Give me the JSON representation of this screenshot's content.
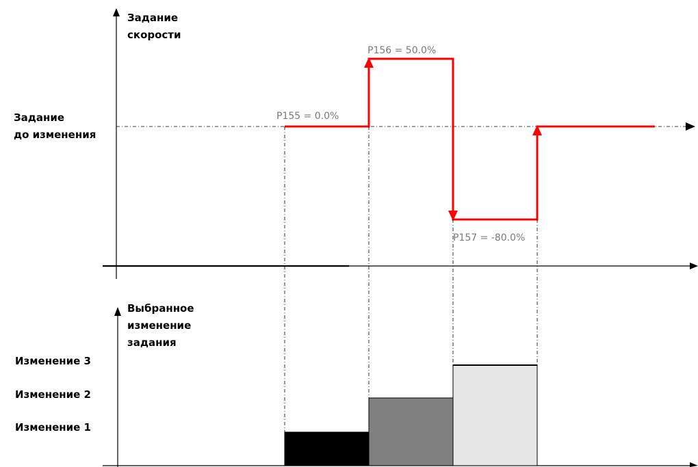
{
  "top_chart": {
    "y_axis_label": [
      "Задание",
      "скорости"
    ],
    "baseline_label": [
      "Задание",
      "до изменения"
    ],
    "annotations": {
      "p155": "P155 = 0.0%",
      "p156": "P156 = 50.0%",
      "p157": "P157 = -80.0%"
    },
    "colors": {
      "speed_line": "#ff0000",
      "axis": "#000000",
      "guide": "#000000"
    }
  },
  "bottom_chart": {
    "y_axis_label": [
      "Выбранное",
      "изменение",
      "задания"
    ],
    "levels": [
      "Изменение 3",
      "Изменение 2",
      "Изменение 1"
    ],
    "colors": {
      "change_1": "#000000",
      "change_2": "#808080",
      "change_3": "#e6e6e6"
    }
  }
}
